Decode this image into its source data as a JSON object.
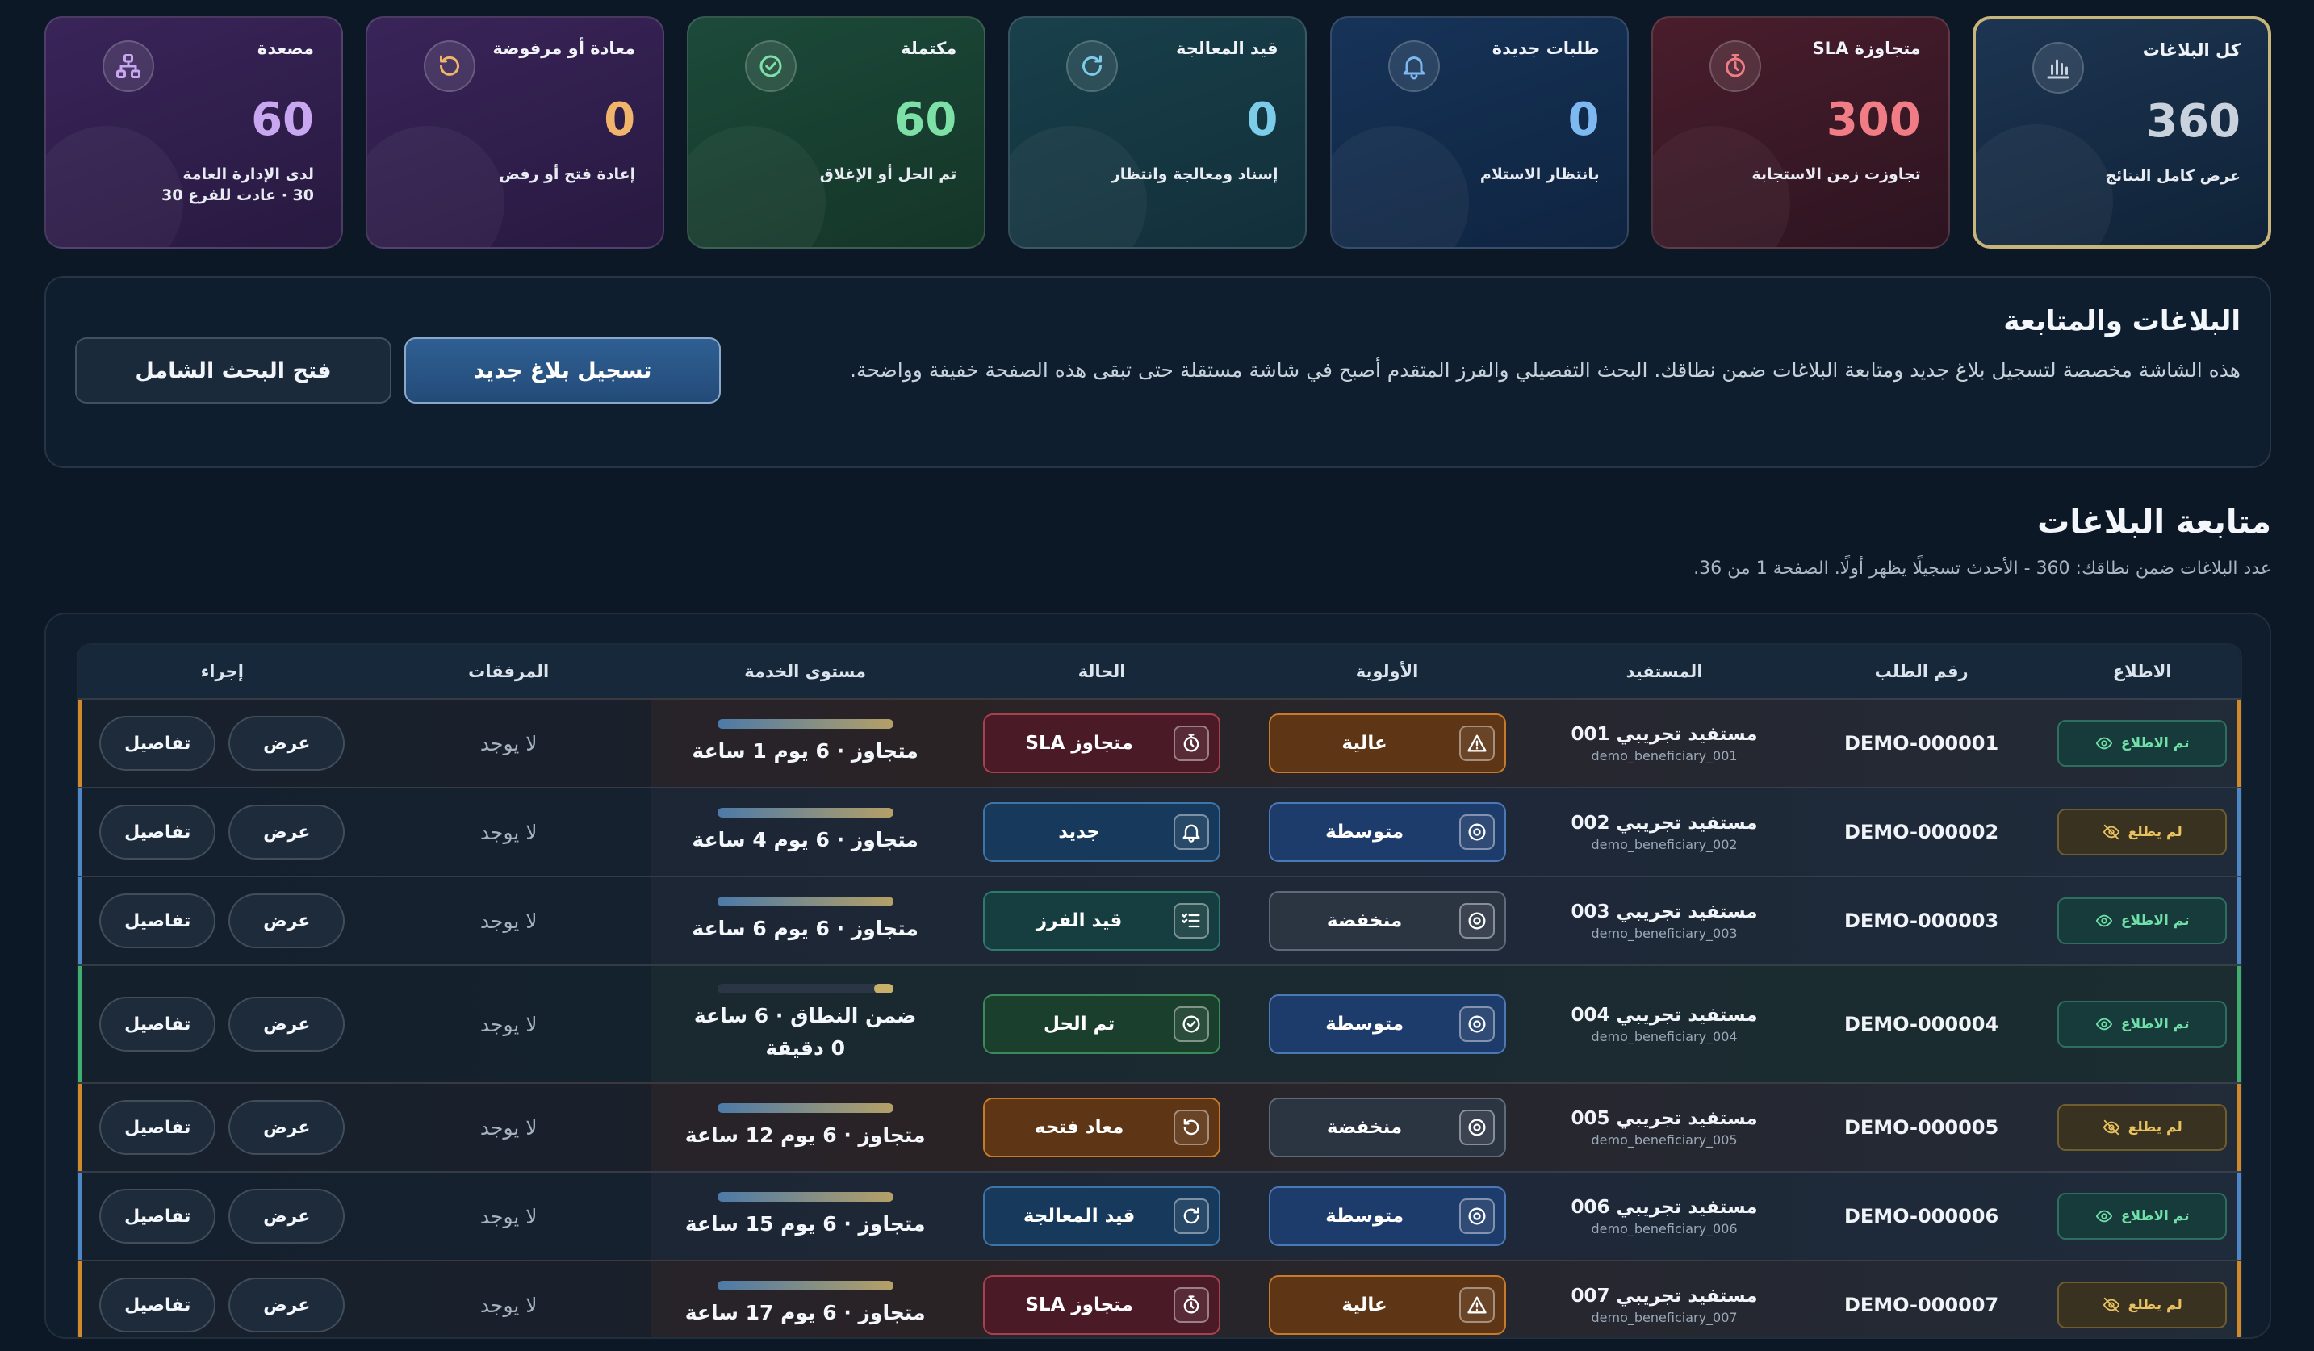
{
  "cards": [
    {
      "key": "all",
      "title": "كل البلاغات",
      "value": "360",
      "sub": "عرض كامل النتائج",
      "sub2": "",
      "color": "#c9d2dc",
      "icon": "bar-chart-icon"
    },
    {
      "key": "sla",
      "title": "متجاوزة SLA",
      "value": "300",
      "sub": "تجاوزت زمن الاستجابة",
      "sub2": "",
      "color": "#f07d86",
      "icon": "timer-icon"
    },
    {
      "key": "new",
      "title": "طلبات جديدة",
      "value": "0",
      "sub": "بانتظار الاستلام",
      "sub2": "",
      "color": "#7db8f0",
      "icon": "bell-icon"
    },
    {
      "key": "proc",
      "title": "قيد المعالجة",
      "value": "0",
      "sub": "إسناد ومعالجة وانتظار",
      "sub2": "",
      "color": "#7ccbe8",
      "icon": "refresh-icon"
    },
    {
      "key": "done",
      "title": "مكتملة",
      "value": "60",
      "sub": "تم الحل أو الإغلاق",
      "sub2": "",
      "color": "#7de0a6",
      "icon": "check-circle-icon"
    },
    {
      "key": "reopen",
      "title": "معادة أو مرفوضة",
      "value": "0",
      "sub": "إعادة فتح أو رفض",
      "sub2": "",
      "color": "#f0b46a",
      "icon": "undo-icon"
    },
    {
      "key": "esc",
      "title": "مصعدة",
      "value": "60",
      "sub": "لدى الإدارة العامة",
      "sub2": "30 · عادت للفرع 30",
      "color": "#c9a7f0",
      "icon": "hierarchy-icon"
    }
  ],
  "intro": {
    "title": "البلاغات والمتابعة",
    "text": "هذه الشاشة مخصصة لتسجيل بلاغ جديد ومتابعة البلاغات ضمن نطاقك. البحث التفصيلي والفرز المتقدم أصبح في شاشة مستقلة حتى تبقى هذه الصفحة خفيفة وواضحة.",
    "new_button": "تسجيل بلاغ جديد",
    "search_button": "فتح البحث الشامل"
  },
  "section": {
    "title": "متابعة البلاغات",
    "meta": "عدد البلاغات ضمن نطاقك: 360 - الأحدث تسجيلًا يظهر أولًا. الصفحة 1 من 36."
  },
  "table": {
    "headers": [
      "الاطلاع",
      "رقم الطلب",
      "المستفيد",
      "الأولوية",
      "الحالة",
      "مستوى الخدمة",
      "المرفقات",
      "إجراء"
    ],
    "rows": [
      {
        "ack": "تم الاطلاع",
        "ack_seen": true,
        "num": "DEMO-000001",
        "ben": "مستفيد تجريبي 001",
        "user": "demo_beneficiary_001",
        "priority": "عالية",
        "pclass": "p-high",
        "picon": "warning-icon",
        "status": "متجاوز SLA",
        "sclass": "s-sla",
        "sicon": "timer-icon",
        "sla": "متجاوز · 6 يوم 1 ساعة",
        "att": "لا يوجد",
        "view": "عرض",
        "details": "تفاصيل",
        "tone": "orange",
        "tall": false
      },
      {
        "ack": "لم يطلع",
        "ack_seen": false,
        "num": "DEMO-000002",
        "ben": "مستفيد تجريبي 002",
        "user": "demo_beneficiary_002",
        "priority": "متوسطة",
        "pclass": "p-mid",
        "picon": "target-icon",
        "status": "جديد",
        "sclass": "s-new",
        "sicon": "bell-icon",
        "sla": "متجاوز · 6 يوم 4 ساعة",
        "att": "لا يوجد",
        "view": "عرض",
        "details": "تفاصيل",
        "tone": "blue",
        "tall": false
      },
      {
        "ack": "تم الاطلاع",
        "ack_seen": true,
        "num": "DEMO-000003",
        "ben": "مستفيد تجريبي 003",
        "user": "demo_beneficiary_003",
        "priority": "منخفضة",
        "pclass": "p-low",
        "picon": "target-icon",
        "status": "قيد الفرز",
        "sclass": "s-sort",
        "sicon": "list-check-icon",
        "sla": "متجاوز · 6 يوم 6 ساعة",
        "att": "لا يوجد",
        "view": "عرض",
        "details": "تفاصيل",
        "tone": "blue",
        "tall": false
      },
      {
        "ack": "تم الاطلاع",
        "ack_seen": true,
        "num": "DEMO-000004",
        "ben": "مستفيد تجريبي 004",
        "user": "demo_beneficiary_004",
        "priority": "متوسطة",
        "pclass": "p-mid",
        "picon": "target-icon",
        "status": "تم الحل",
        "sclass": "s-done",
        "sicon": "check-circle-icon",
        "sla": "ضمن النطاق · 6 ساعة 0 دقيقة",
        "att": "لا يوجد",
        "view": "عرض",
        "details": "تفاصيل",
        "tone": "green",
        "tall": true
      },
      {
        "ack": "لم يطلع",
        "ack_seen": false,
        "num": "DEMO-000005",
        "ben": "مستفيد تجريبي 005",
        "user": "demo_beneficiary_005",
        "priority": "منخفضة",
        "pclass": "p-low",
        "picon": "target-icon",
        "status": "معاد فتحه",
        "sclass": "s-re",
        "sicon": "undo-icon",
        "sla": "متجاوز · 6 يوم 12 ساعة",
        "att": "لا يوجد",
        "view": "عرض",
        "details": "تفاصيل",
        "tone": "orange",
        "tall": false
      },
      {
        "ack": "تم الاطلاع",
        "ack_seen": true,
        "num": "DEMO-000006",
        "ben": "مستفيد تجريبي 006",
        "user": "demo_beneficiary_006",
        "priority": "متوسطة",
        "pclass": "p-mid",
        "picon": "target-icon",
        "status": "قيد المعالجة",
        "sclass": "s-proc",
        "sicon": "refresh-icon",
        "sla": "متجاوز · 6 يوم 15 ساعة",
        "att": "لا يوجد",
        "view": "عرض",
        "details": "تفاصيل",
        "tone": "blue",
        "tall": false
      },
      {
        "ack": "لم يطلع",
        "ack_seen": false,
        "num": "DEMO-000007",
        "ben": "مستفيد تجريبي 007",
        "user": "demo_beneficiary_007",
        "priority": "عالية",
        "pclass": "p-high",
        "picon": "warning-icon",
        "status": "متجاوز SLA",
        "sclass": "s-sla",
        "sicon": "timer-icon",
        "sla": "متجاوز · 6 يوم 17 ساعة",
        "att": "لا يوجد",
        "view": "عرض",
        "details": "تفاصيل",
        "tone": "orange",
        "tall": false
      }
    ]
  }
}
